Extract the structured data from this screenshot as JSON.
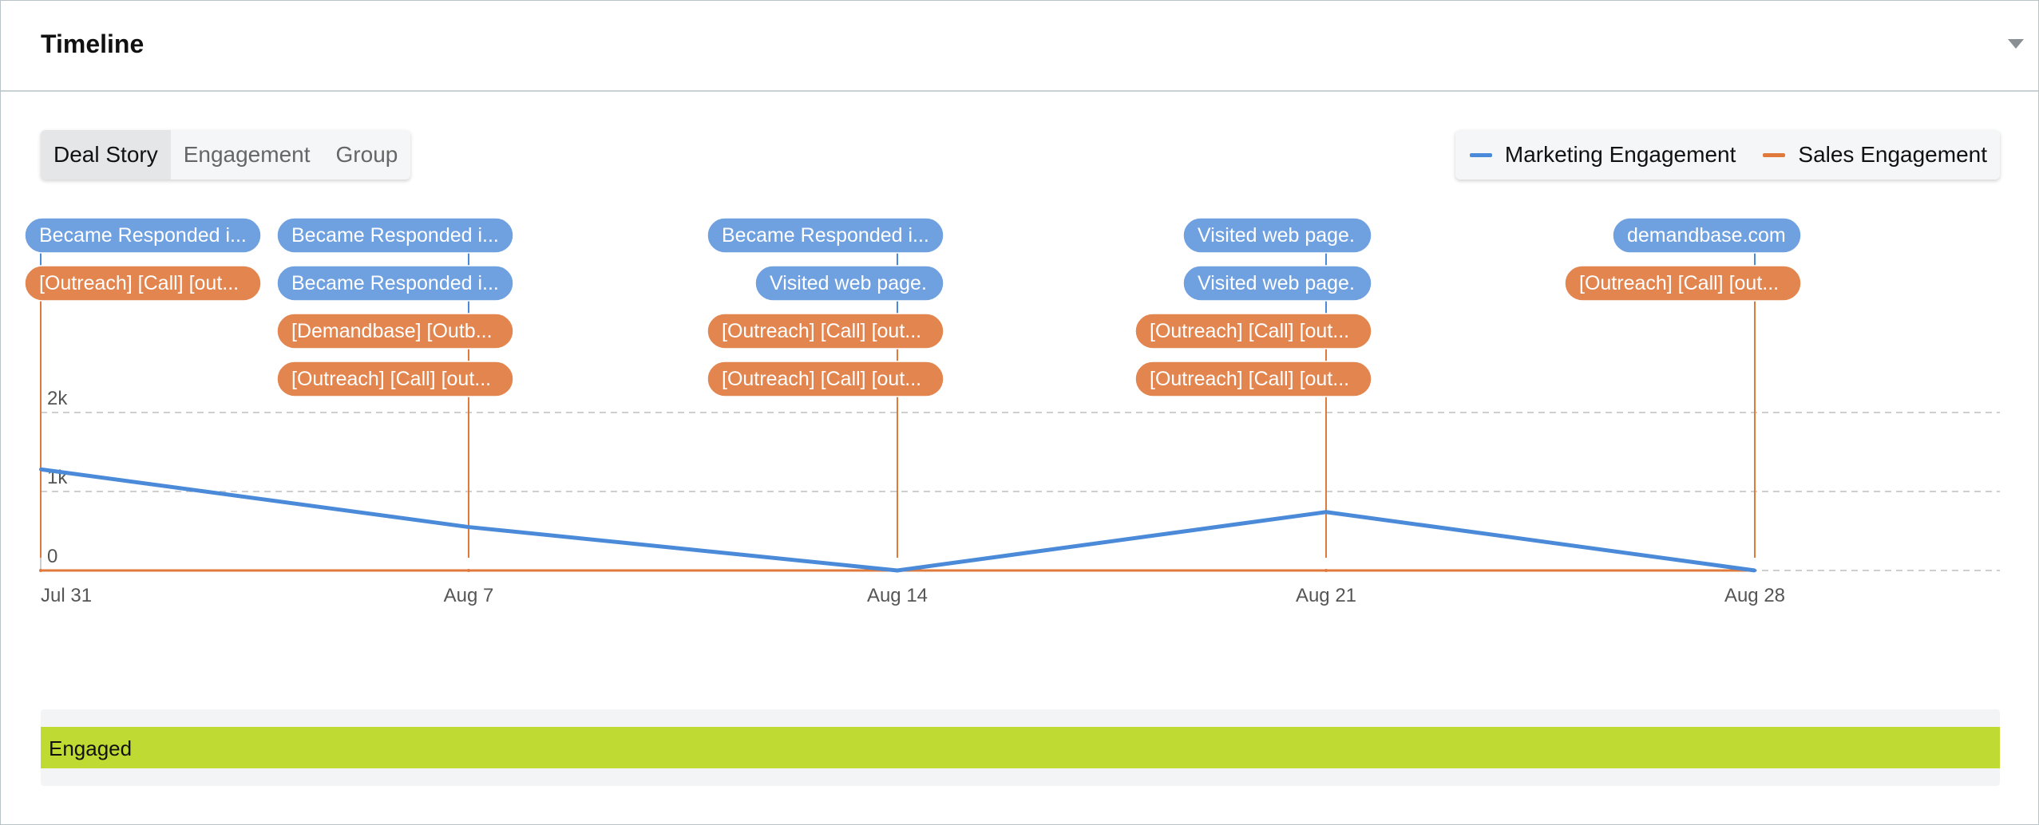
{
  "header": {
    "title": "Timeline"
  },
  "tabs": [
    {
      "label": "Deal Story",
      "active": true
    },
    {
      "label": "Engagement",
      "active": false
    },
    {
      "label": "Group",
      "active": false
    }
  ],
  "legend": [
    {
      "label": "Marketing Engagement",
      "color": "#4a8ad8"
    },
    {
      "label": "Sales Engagement",
      "color": "#e07a3c"
    }
  ],
  "chart_data": {
    "type": "line",
    "x": [
      "Jul 31",
      "Aug 7",
      "Aug 14",
      "Aug 21",
      "Aug 28"
    ],
    "x_ticks": [
      "Jul 31",
      "Aug 7",
      "Aug 14",
      "Aug 21",
      "Aug 28"
    ],
    "y_ticks": [
      "0",
      "1k",
      "2k"
    ],
    "ylim": [
      0,
      2000
    ],
    "grid": true,
    "series": [
      {
        "name": "Marketing Engagement",
        "color": "#4a8ad8",
        "values": [
          1280,
          550,
          0,
          740,
          0
        ]
      },
      {
        "name": "Sales Engagement",
        "color": "#e07a3c",
        "values": [
          0,
          0,
          0,
          0,
          0
        ]
      }
    ]
  },
  "events": [
    {
      "date": "Jul 31",
      "pills": [
        {
          "label": "Became Responded i...",
          "kind": "marketing"
        },
        {
          "label": "[Outreach] [Call] [out...",
          "kind": "sales"
        }
      ]
    },
    {
      "date": "Aug 7",
      "pills": [
        {
          "label": "Became Responded i...",
          "kind": "marketing"
        },
        {
          "label": "Became Responded i...",
          "kind": "marketing"
        },
        {
          "label": "[Demandbase] [Outb...",
          "kind": "sales"
        },
        {
          "label": "[Outreach] [Call] [out...",
          "kind": "sales"
        }
      ]
    },
    {
      "date": "Aug 14",
      "pills": [
        {
          "label": "Became Responded i...",
          "kind": "marketing"
        },
        {
          "label": "Visited web page.",
          "kind": "marketing"
        },
        {
          "label": "[Outreach] [Call] [out...",
          "kind": "sales"
        },
        {
          "label": "[Outreach] [Call] [out...",
          "kind": "sales"
        }
      ]
    },
    {
      "date": "Aug 21",
      "pills": [
        {
          "label": "Visited web page.",
          "kind": "marketing"
        },
        {
          "label": "Visited web page.",
          "kind": "marketing"
        },
        {
          "label": "[Outreach] [Call] [out...",
          "kind": "sales"
        },
        {
          "label": "[Outreach] [Call] [out...",
          "kind": "sales"
        }
      ]
    },
    {
      "date": "Aug 28",
      "pills": [
        {
          "label": "demandbase.com",
          "kind": "marketing"
        },
        {
          "label": "[Outreach] [Call] [out...",
          "kind": "sales"
        }
      ]
    }
  ],
  "stages": [
    {
      "label": "Engaged",
      "color": "#bfdb33"
    }
  ]
}
